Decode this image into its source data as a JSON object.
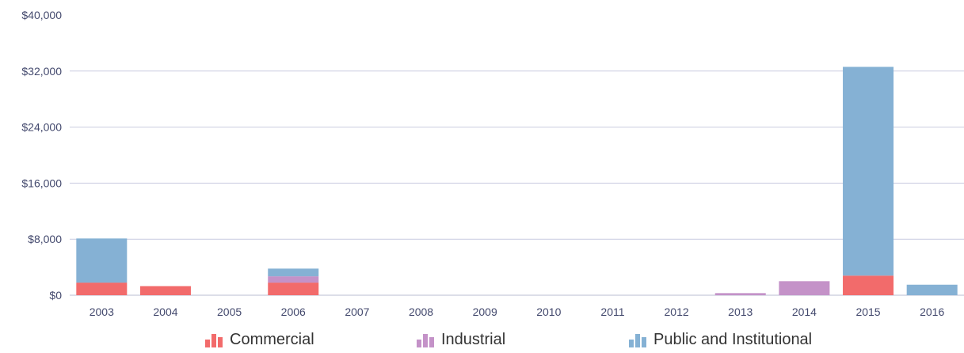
{
  "chart_data": {
    "type": "bar",
    "stacked": true,
    "categories": [
      "2003",
      "2004",
      "2005",
      "2006",
      "2007",
      "2008",
      "2009",
      "2010",
      "2011",
      "2012",
      "2013",
      "2014",
      "2015",
      "2016"
    ],
    "series": [
      {
        "name": "Commercial",
        "color": "#f26b6b",
        "values": [
          1800,
          1300,
          0,
          1800,
          0,
          0,
          0,
          0,
          0,
          0,
          0,
          0,
          2800,
          0
        ]
      },
      {
        "name": "Industrial",
        "color": "#c492c8",
        "values": [
          0,
          0,
          0,
          900,
          0,
          0,
          0,
          0,
          0,
          0,
          300,
          2000,
          0,
          0
        ]
      },
      {
        "name": "Public and Institutional",
        "color": "#85b1d4",
        "values": [
          6300,
          0,
          0,
          1100,
          0,
          0,
          0,
          0,
          0,
          0,
          0,
          0,
          29800,
          1500
        ]
      }
    ],
    "ylim": [
      0,
      40000
    ],
    "yticks": [
      0,
      8000,
      16000,
      24000,
      32000,
      40000
    ],
    "ytick_labels": [
      "$0",
      "$8,000",
      "$16,000",
      "$24,000",
      "$32,000",
      "$40,000"
    ],
    "grid": true,
    "legend": "bottom"
  },
  "legend_items": [
    {
      "label": "Commercial",
      "icon": "bar-chart-icon",
      "color": "#f26b6b"
    },
    {
      "label": "Industrial",
      "icon": "bar-chart-icon",
      "color": "#c492c8"
    },
    {
      "label": "Public and Institutional",
      "icon": "bar-chart-icon",
      "color": "#85b1d4"
    }
  ]
}
